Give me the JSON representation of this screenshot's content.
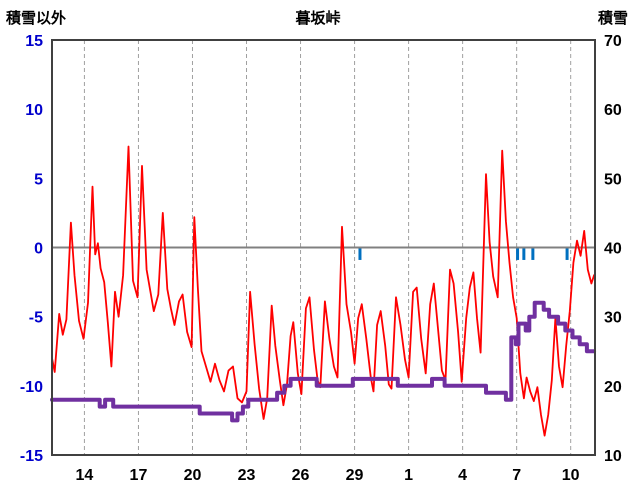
{
  "header": {
    "left_axis_title": "積雪以外",
    "title": "暮坂峠",
    "right_axis_title": "積雪"
  },
  "chart_data": {
    "type": "line",
    "title": "暮坂峠",
    "grid": {
      "vertical_dashed": true,
      "zero_line": true,
      "horizontal_gridlines": false
    },
    "left_axis": {
      "label": "積雪以外",
      "min": -15,
      "max": 15,
      "ticks": [
        15,
        10,
        5,
        0,
        -5,
        -10,
        -15
      ],
      "tick_color": "#0000CC"
    },
    "right_axis": {
      "label": "積雪",
      "min": 10,
      "max": 70,
      "ticks": [
        70,
        60,
        50,
        40,
        30,
        20,
        10
      ],
      "tick_color": "#000000"
    },
    "x_axis": {
      "min": 12.2,
      "max": 42.35,
      "ticks": [
        14,
        17,
        20,
        23,
        26,
        29,
        32,
        35,
        38,
        41
      ],
      "tick_labels": [
        "14",
        "17",
        "20",
        "23",
        "26",
        "29",
        "1",
        "4",
        "7",
        "10"
      ],
      "tick_color": "#000000"
    },
    "series": [
      {
        "id": "red",
        "axis": "left",
        "type": "line",
        "color": "#FF0000",
        "width": 1.8,
        "points": [
          [
            12.2,
            -8.0
          ],
          [
            12.35,
            -9.0
          ],
          [
            12.6,
            -4.8
          ],
          [
            12.8,
            -6.3
          ],
          [
            13.0,
            -5.2
          ],
          [
            13.25,
            1.8
          ],
          [
            13.45,
            -2.0
          ],
          [
            13.7,
            -5.3
          ],
          [
            13.95,
            -6.6
          ],
          [
            14.2,
            -4.0
          ],
          [
            14.45,
            4.4
          ],
          [
            14.6,
            -0.5
          ],
          [
            14.75,
            0.3
          ],
          [
            14.9,
            -1.5
          ],
          [
            15.1,
            -2.5
          ],
          [
            15.3,
            -5.4
          ],
          [
            15.5,
            -8.6
          ],
          [
            15.7,
            -3.2
          ],
          [
            15.9,
            -5.0
          ],
          [
            16.15,
            -2.0
          ],
          [
            16.45,
            7.3
          ],
          [
            16.7,
            -2.4
          ],
          [
            16.95,
            -3.6
          ],
          [
            17.2,
            5.9
          ],
          [
            17.45,
            -1.6
          ],
          [
            17.65,
            -3.1
          ],
          [
            17.85,
            -4.6
          ],
          [
            18.1,
            -3.4
          ],
          [
            18.35,
            2.5
          ],
          [
            18.6,
            -3.0
          ],
          [
            18.8,
            -4.4
          ],
          [
            19.0,
            -5.6
          ],
          [
            19.25,
            -3.9
          ],
          [
            19.45,
            -3.4
          ],
          [
            19.7,
            -6.1
          ],
          [
            19.95,
            -7.2
          ],
          [
            20.1,
            2.2
          ],
          [
            20.3,
            -3.0
          ],
          [
            20.5,
            -7.5
          ],
          [
            20.75,
            -8.6
          ],
          [
            21.0,
            -9.7
          ],
          [
            21.25,
            -8.4
          ],
          [
            21.5,
            -9.6
          ],
          [
            21.75,
            -10.4
          ],
          [
            22.0,
            -8.9
          ],
          [
            22.25,
            -8.6
          ],
          [
            22.5,
            -10.9
          ],
          [
            22.75,
            -11.2
          ],
          [
            23.0,
            -10.4
          ],
          [
            23.2,
            -3.2
          ],
          [
            23.45,
            -7.0
          ],
          [
            23.7,
            -10.2
          ],
          [
            23.95,
            -12.4
          ],
          [
            24.15,
            -10.9
          ],
          [
            24.4,
            -4.2
          ],
          [
            24.6,
            -7.1
          ],
          [
            24.85,
            -9.6
          ],
          [
            25.05,
            -11.4
          ],
          [
            25.25,
            -9.9
          ],
          [
            25.45,
            -6.4
          ],
          [
            25.6,
            -5.4
          ],
          [
            25.85,
            -9.1
          ],
          [
            26.05,
            -10.6
          ],
          [
            26.3,
            -4.4
          ],
          [
            26.5,
            -3.6
          ],
          [
            26.75,
            -7.4
          ],
          [
            26.95,
            -9.6
          ],
          [
            27.1,
            -10.1
          ],
          [
            27.35,
            -3.9
          ],
          [
            27.6,
            -6.6
          ],
          [
            27.85,
            -8.6
          ],
          [
            28.05,
            -9.4
          ],
          [
            28.3,
            1.5
          ],
          [
            28.55,
            -4.1
          ],
          [
            28.8,
            -6.1
          ],
          [
            29.0,
            -8.4
          ],
          [
            29.2,
            -5.1
          ],
          [
            29.4,
            -4.1
          ],
          [
            29.65,
            -6.6
          ],
          [
            29.9,
            -9.4
          ],
          [
            30.05,
            -10.4
          ],
          [
            30.25,
            -5.6
          ],
          [
            30.45,
            -4.6
          ],
          [
            30.7,
            -7.1
          ],
          [
            30.9,
            -9.9
          ],
          [
            31.05,
            -10.2
          ],
          [
            31.3,
            -3.6
          ],
          [
            31.55,
            -5.6
          ],
          [
            31.8,
            -8.1
          ],
          [
            32.0,
            -9.4
          ],
          [
            32.25,
            -3.2
          ],
          [
            32.45,
            -2.9
          ],
          [
            32.7,
            -6.6
          ],
          [
            32.95,
            -9.1
          ],
          [
            33.2,
            -4.1
          ],
          [
            33.4,
            -2.6
          ],
          [
            33.65,
            -6.1
          ],
          [
            33.85,
            -8.9
          ],
          [
            34.05,
            -9.6
          ],
          [
            34.3,
            -1.6
          ],
          [
            34.5,
            -2.6
          ],
          [
            34.75,
            -6.1
          ],
          [
            34.95,
            -9.7
          ],
          [
            35.2,
            -5.1
          ],
          [
            35.4,
            -2.9
          ],
          [
            35.6,
            -1.8
          ],
          [
            35.8,
            -5.1
          ],
          [
            36.0,
            -7.6
          ],
          [
            36.3,
            5.3
          ],
          [
            36.5,
            0.4
          ],
          [
            36.7,
            -2.1
          ],
          [
            36.95,
            -3.6
          ],
          [
            37.2,
            7.0
          ],
          [
            37.4,
            1.9
          ],
          [
            37.6,
            -1.1
          ],
          [
            37.8,
            -3.6
          ],
          [
            38.0,
            -5.1
          ],
          [
            38.2,
            -9.1
          ],
          [
            38.4,
            -10.9
          ],
          [
            38.55,
            -9.4
          ],
          [
            38.75,
            -10.4
          ],
          [
            38.95,
            -11.1
          ],
          [
            39.15,
            -10.1
          ],
          [
            39.35,
            -12.1
          ],
          [
            39.55,
            -13.6
          ],
          [
            39.75,
            -12.1
          ],
          [
            39.95,
            -9.6
          ],
          [
            40.15,
            -5.1
          ],
          [
            40.35,
            -8.6
          ],
          [
            40.55,
            -10.1
          ],
          [
            40.75,
            -7.1
          ],
          [
            40.95,
            -4.6
          ],
          [
            41.15,
            -1.1
          ],
          [
            41.35,
            0.5
          ],
          [
            41.55,
            -0.6
          ],
          [
            41.75,
            1.2
          ],
          [
            41.95,
            -1.6
          ],
          [
            42.15,
            -2.6
          ],
          [
            42.3,
            -2.0
          ]
        ]
      },
      {
        "id": "purple",
        "axis": "right",
        "type": "step",
        "color": "#7030A0",
        "width": 4,
        "points": [
          [
            12.2,
            18
          ],
          [
            14.85,
            18
          ],
          [
            14.85,
            17
          ],
          [
            15.15,
            17
          ],
          [
            15.15,
            18
          ],
          [
            15.6,
            18
          ],
          [
            15.6,
            17
          ],
          [
            20.4,
            17
          ],
          [
            20.4,
            16
          ],
          [
            22.2,
            16
          ],
          [
            22.2,
            15
          ],
          [
            22.5,
            15
          ],
          [
            22.5,
            16
          ],
          [
            22.8,
            16
          ],
          [
            22.8,
            17
          ],
          [
            23.1,
            17
          ],
          [
            23.1,
            18
          ],
          [
            24.7,
            18
          ],
          [
            24.7,
            19
          ],
          [
            25.1,
            19
          ],
          [
            25.1,
            20
          ],
          [
            25.45,
            20
          ],
          [
            25.45,
            21
          ],
          [
            26.9,
            21
          ],
          [
            26.9,
            20
          ],
          [
            28.9,
            20
          ],
          [
            28.9,
            21
          ],
          [
            31.4,
            21
          ],
          [
            31.4,
            20
          ],
          [
            33.3,
            20
          ],
          [
            33.3,
            21
          ],
          [
            34.0,
            21
          ],
          [
            34.0,
            20
          ],
          [
            36.3,
            20
          ],
          [
            36.3,
            19
          ],
          [
            37.4,
            19
          ],
          [
            37.4,
            18
          ],
          [
            37.7,
            18
          ],
          [
            37.7,
            27
          ],
          [
            37.95,
            27
          ],
          [
            37.95,
            26
          ],
          [
            38.1,
            26
          ],
          [
            38.1,
            29
          ],
          [
            38.5,
            29
          ],
          [
            38.5,
            28
          ],
          [
            38.7,
            28
          ],
          [
            38.7,
            30
          ],
          [
            39.0,
            30
          ],
          [
            39.0,
            32
          ],
          [
            39.5,
            32
          ],
          [
            39.5,
            31
          ],
          [
            39.8,
            31
          ],
          [
            39.8,
            30
          ],
          [
            40.3,
            30
          ],
          [
            40.3,
            29
          ],
          [
            40.7,
            29
          ],
          [
            40.7,
            28
          ],
          [
            41.1,
            28
          ],
          [
            41.1,
            27
          ],
          [
            41.5,
            27
          ],
          [
            41.5,
            26
          ],
          [
            41.9,
            26
          ],
          [
            41.9,
            25
          ],
          [
            42.3,
            25
          ]
        ]
      },
      {
        "id": "blue",
        "axis": "left",
        "type": "bars",
        "color": "#0070C0",
        "top": 0,
        "bottom": -0.9,
        "x": [
          29.3,
          38.05,
          38.4,
          38.9,
          40.8
        ]
      }
    ]
  }
}
